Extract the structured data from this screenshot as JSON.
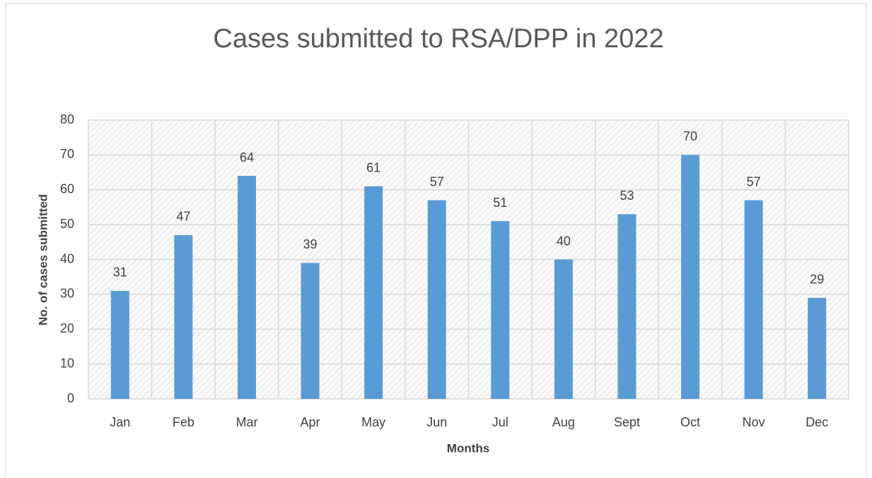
{
  "chart_data": {
    "type": "bar",
    "title": "Cases submitted to RSA/DPP in 2022",
    "xlabel": "Months",
    "ylabel": "No. of cases submitted",
    "categories": [
      "Jan",
      "Feb",
      "Mar",
      "Apr",
      "May",
      "Jun",
      "Jul",
      "Aug",
      "Sept",
      "Oct",
      "Nov",
      "Dec"
    ],
    "values": [
      31,
      47,
      64,
      39,
      61,
      57,
      51,
      40,
      53,
      70,
      57,
      29
    ],
    "color": "#5b9bd5",
    "ylim": [
      0,
      80
    ],
    "yticks": [
      0,
      10,
      20,
      30,
      40,
      50,
      60,
      70,
      80
    ],
    "grid": true
  }
}
